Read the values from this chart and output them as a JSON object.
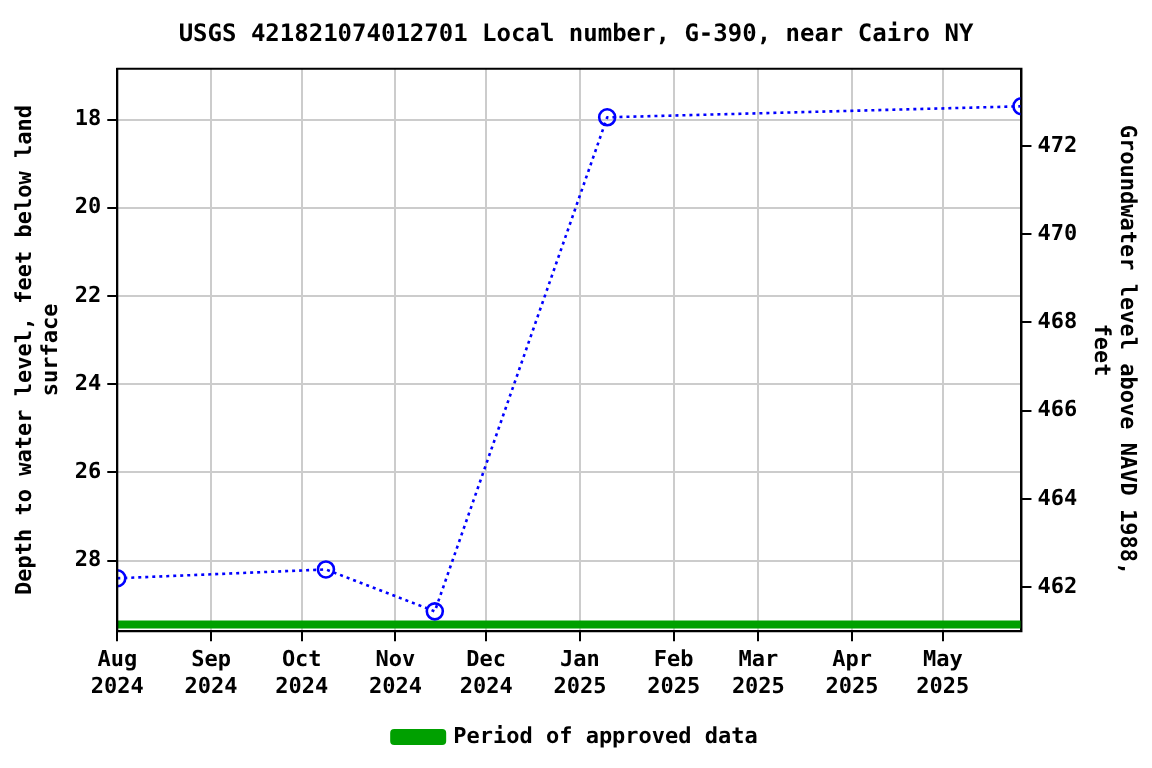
{
  "chart_data": {
    "type": "line",
    "title": "USGS 421821074012701 Local number, G-390, near Cairo NY",
    "ylabel": "Depth to water level, feet below land surface",
    "y2label": "Groundwater level above NAVD 1988, feet",
    "xlim": [
      "2024-08-01",
      "2025-05-27"
    ],
    "xticks": [
      {
        "value": "2024-08-01",
        "label": "Aug 2024"
      },
      {
        "value": "2024-09-01",
        "label": "Sep 2024"
      },
      {
        "value": "2024-10-01",
        "label": "Oct 2024"
      },
      {
        "value": "2024-11-01",
        "label": "Nov 2024"
      },
      {
        "value": "2024-12-01",
        "label": "Dec 2024"
      },
      {
        "value": "2025-01-01",
        "label": "Jan 2025"
      },
      {
        "value": "2025-02-01",
        "label": "Feb 2025"
      },
      {
        "value": "2025-03-01",
        "label": "Mar 2025"
      },
      {
        "value": "2025-04-01",
        "label": "Apr 2025"
      },
      {
        "value": "2025-05-01",
        "label": "May 2025"
      }
    ],
    "ylim": [
      29.6,
      16.85
    ],
    "yticks": [
      18,
      20,
      22,
      24,
      26,
      28
    ],
    "y2lim": [
      461.0,
      473.75
    ],
    "y2ticks": [
      462,
      464,
      466,
      468,
      470,
      472
    ],
    "series": [
      {
        "color": "#0000ff",
        "x": [
          "2024-08-01",
          "2024-10-09",
          "2024-11-14",
          "2025-01-10",
          "2025-05-27"
        ],
        "values": [
          28.4,
          28.2,
          29.15,
          17.95,
          17.7
        ],
        "marker": "circle",
        "line_style": "dotted"
      },
      {
        "name": "Period of approved data",
        "color": "#00a000",
        "x": [
          "2024-08-01",
          "2025-05-27"
        ],
        "values": [
          29.45,
          29.45
        ],
        "marker": "none",
        "line_style": "solid"
      }
    ],
    "grid": true,
    "legend": "bottom"
  }
}
